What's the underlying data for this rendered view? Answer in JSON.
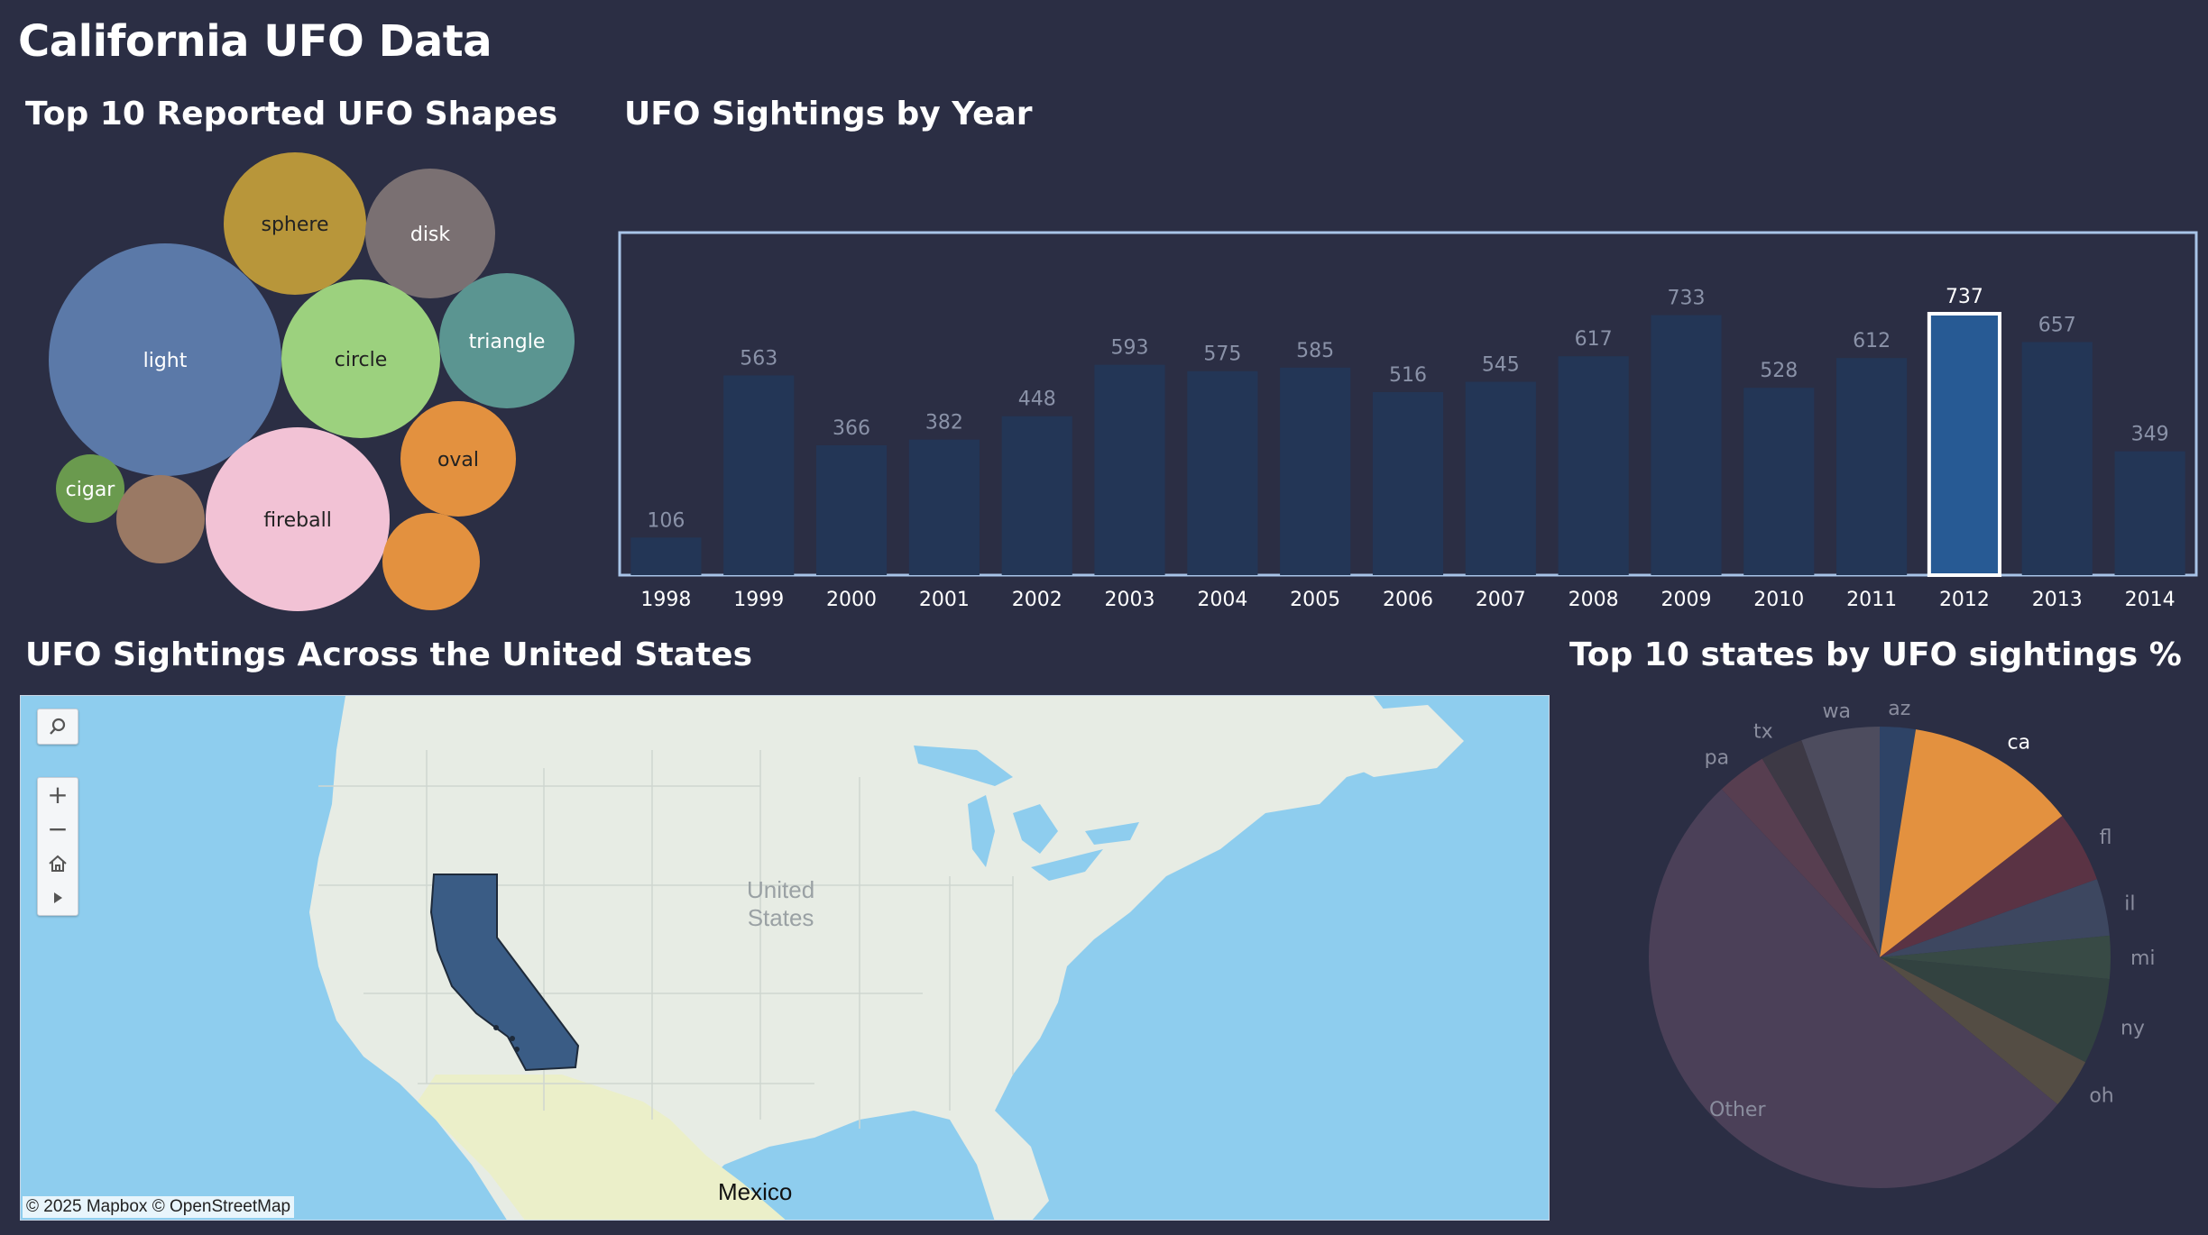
{
  "dashboard": {
    "title": "California UFO Data"
  },
  "shapes": {
    "title": "Top 10 Reported UFO Shapes",
    "items": [
      {
        "label": "light",
        "color": "#5b79a8"
      },
      {
        "label": "sphere",
        "color": "#b8963a"
      },
      {
        "label": "disk",
        "color": "#7a7072"
      },
      {
        "label": "circle",
        "color": "#9cd17e"
      },
      {
        "label": "triangle",
        "color": "#5b9591"
      },
      {
        "label": "oval",
        "color": "#e3913f"
      },
      {
        "label": "fireball",
        "color": "#f2c2d5"
      },
      {
        "label": "cigar",
        "color": "#6a9a4e"
      },
      {
        "label": "",
        "color": "#9a7964"
      },
      {
        "label": "",
        "color": "#e3913f"
      }
    ]
  },
  "years": {
    "title": "UFO Sightings by Year",
    "selected": "2012"
  },
  "chart_data": {
    "type": "bar",
    "categories": [
      "1998",
      "1999",
      "2000",
      "2001",
      "2002",
      "2003",
      "2004",
      "2005",
      "2006",
      "2007",
      "2008",
      "2009",
      "2010",
      "2011",
      "2012",
      "2013",
      "2014"
    ],
    "values": [
      106,
      563,
      366,
      382,
      448,
      593,
      575,
      585,
      516,
      545,
      617,
      733,
      528,
      612,
      737,
      657,
      349
    ],
    "title": "UFO Sightings by Year",
    "ylim": [
      0,
      800
    ],
    "grid": false
  },
  "map": {
    "title": "UFO Sightings Across the United States",
    "label_country": "United\nStates",
    "label_mexico": "Mexico",
    "attribution": "© 2025 Mapbox  © OpenStreetMap",
    "highlighted": "California",
    "highlight_color": "#3a5c85",
    "tools": [
      "search-icon",
      "zoom-in-icon",
      "zoom-out-icon",
      "home-icon",
      "play-icon"
    ]
  },
  "pie": {
    "title": "Top 10 states by UFO sightings %",
    "slices": [
      {
        "label": "az",
        "pct": 2.5,
        "color": "#2e4366"
      },
      {
        "label": "ca",
        "pct": 12,
        "color": "#e3913f"
      },
      {
        "label": "fl",
        "pct": 5,
        "color": "#5a3344"
      },
      {
        "label": "il",
        "pct": 4,
        "color": "#3d4760"
      },
      {
        "label": "mi",
        "pct": 3,
        "color": "#384a45"
      },
      {
        "label": "ny",
        "pct": 6,
        "color": "#324240"
      },
      {
        "label": "oh",
        "pct": 3.5,
        "color": "#544d44"
      },
      {
        "label": "Other",
        "pct": 52,
        "color": "#4b4058"
      },
      {
        "label": "pa",
        "pct": 3.5,
        "color": "#573e50"
      },
      {
        "label": "tx",
        "pct": 3,
        "color": "#3d3945"
      },
      {
        "label": "wa",
        "pct": 5.5,
        "color": "#4d4c5e"
      }
    ]
  }
}
